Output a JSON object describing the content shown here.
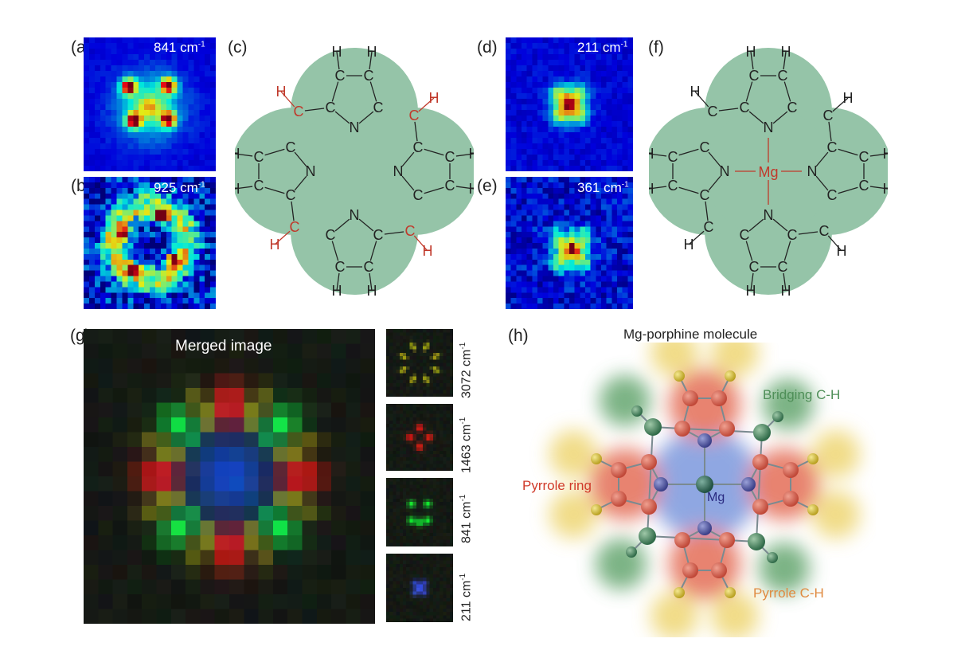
{
  "panels": {
    "a": {
      "label": "(a)",
      "wavenumber": "841 cm",
      "unit_exp": "-1"
    },
    "b": {
      "label": "(b)",
      "wavenumber": "925 cm",
      "unit_exp": "-1"
    },
    "c": {
      "label": "(c)"
    },
    "d": {
      "label": "(d)",
      "wavenumber": "211 cm",
      "unit_exp": "-1"
    },
    "e": {
      "label": "(e)",
      "wavenumber": "361 cm",
      "unit_exp": "-1"
    },
    "f": {
      "label": "(f)"
    },
    "g": {
      "label": "(g)",
      "title": "Merged image",
      "channels": [
        {
          "wavenumber": "3072 cm",
          "unit_exp": "-1",
          "color": "#e0e040"
        },
        {
          "wavenumber": "1463 cm",
          "unit_exp": "-1",
          "color": "#e03030"
        },
        {
          "wavenumber": "841 cm",
          "unit_exp": "-1",
          "color": "#30c040"
        },
        {
          "wavenumber": "211 cm",
          "unit_exp": "-1",
          "color": "#3050e0"
        }
      ]
    },
    "h": {
      "label": "(h)",
      "title": "Mg-porphine molecule",
      "annotations": {
        "bridging": "Bridging C-H",
        "pyrrole_ring": "Pyrrole ring",
        "pyrrole_ch": "Pyrrole C-H",
        "metal": "Mg"
      }
    }
  },
  "atoms": {
    "carbon": "C",
    "hydrogen": "H",
    "nitrogen": "N",
    "metal": "Mg"
  },
  "colors": {
    "cloud": "#95c4a8",
    "highlight": "#c0392b",
    "bridging": "#4f8f58",
    "pyrrole_ring": "#d03a2a",
    "pyrrole_ch": "#e08a40",
    "metal_label": "#2a2a80"
  }
}
